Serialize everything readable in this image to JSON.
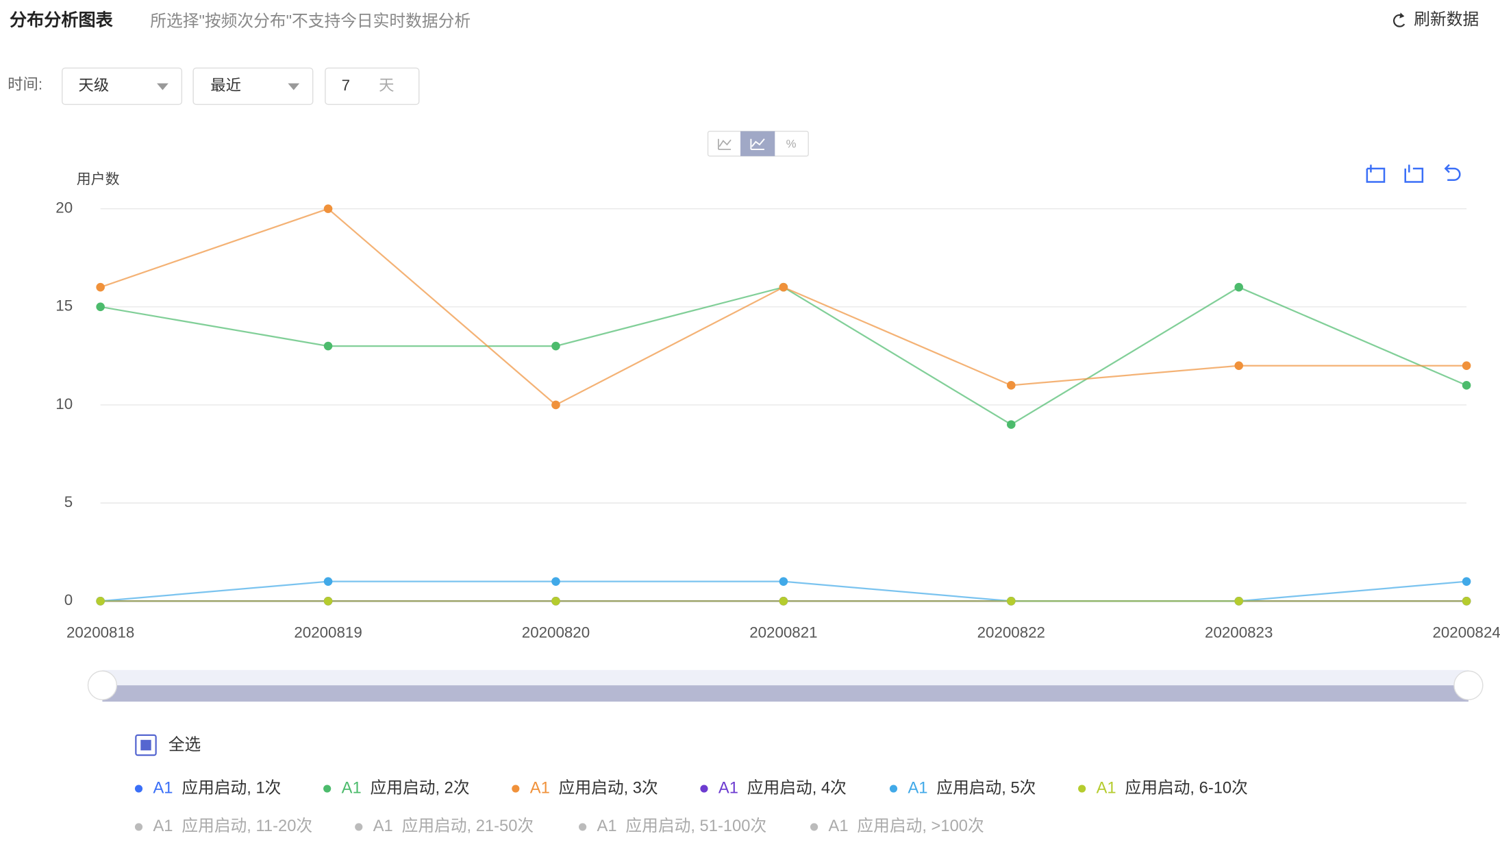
{
  "header": {
    "title": "分布分析图表",
    "subtitle": "所选择\"按频次分布\"不支持今日实时数据分析",
    "refresh": "刷新数据"
  },
  "controls": {
    "time_label": "时间:",
    "granularity": "天级",
    "range": "最近",
    "days": "7",
    "days_unit": "天",
    "percent": "%"
  },
  "legend_all": "全选",
  "chart_data": {
    "type": "line",
    "y_label": "用户数",
    "categories": [
      "20200818",
      "20200819",
      "20200820",
      "20200821",
      "20200822",
      "20200823",
      "20200824"
    ],
    "ylim": [
      0,
      20
    ],
    "yticks": [
      0,
      5,
      10,
      15,
      20
    ],
    "grid": true,
    "series": [
      {
        "tag": "A1",
        "name": "应用启动, 1次",
        "color": "#3a6ff7",
        "selected": true,
        "values": [
          0,
          0,
          0,
          0,
          0,
          0,
          0
        ]
      },
      {
        "tag": "A1",
        "name": "应用启动, 2次",
        "color": "#4cbb6c",
        "selected": true,
        "values": [
          15,
          13,
          13,
          16,
          9,
          16,
          11
        ]
      },
      {
        "tag": "A1",
        "name": "应用启动, 3次",
        "color": "#f0913a",
        "selected": true,
        "values": [
          16,
          20,
          10,
          16,
          11,
          12,
          12
        ]
      },
      {
        "tag": "A1",
        "name": "应用启动, 4次",
        "color": "#6c3bd0",
        "selected": true,
        "values": [
          0,
          0,
          0,
          0,
          0,
          0,
          0
        ]
      },
      {
        "tag": "A1",
        "name": "应用启动, 5次",
        "color": "#41a9e8",
        "selected": true,
        "values": [
          0,
          1,
          1,
          1,
          0,
          0,
          1
        ]
      },
      {
        "tag": "A1",
        "name": "应用启动, 6-10次",
        "color": "#b5cc2e",
        "selected": true,
        "values": [
          0,
          0,
          0,
          0,
          0,
          0,
          0
        ]
      },
      {
        "tag": "A1",
        "name": "应用启动, 11-20次",
        "color": "#bbbbbb",
        "selected": false
      },
      {
        "tag": "A1",
        "name": "应用启动, 21-50次",
        "color": "#bbbbbb",
        "selected": false
      },
      {
        "tag": "A1",
        "name": "应用启动, 51-100次",
        "color": "#bbbbbb",
        "selected": false
      },
      {
        "tag": "A1",
        "name": "应用启动, >100次",
        "color": "#bbbbbb",
        "selected": false
      }
    ]
  }
}
